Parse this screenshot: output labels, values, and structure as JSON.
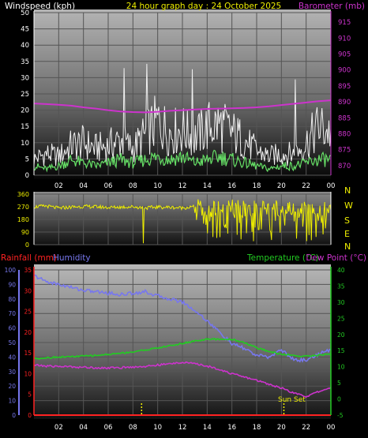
{
  "colors": {
    "wind_avg": "#66e066",
    "wind_gust": "#f0f0f0",
    "barometer": "#cc33cc",
    "direction": "#eeee00",
    "temperature": "#22cc22",
    "dewpoint": "#cc33cc",
    "humidity": "#7777ee",
    "rainfall": "#ff2222",
    "sunset": "#eeee00",
    "title": "#eeee00"
  },
  "chart_data": [
    {
      "type": "line",
      "panel": "wind-barometer",
      "title": "24 hour graph day : 24 October 2025",
      "left_axis_label": "Windspeed (kph)",
      "right_axis_label": "Barometer (mb)",
      "x_tick_labels": [
        "02",
        "04",
        "06",
        "08",
        "10",
        "12",
        "14",
        "16",
        "18",
        "20",
        "22",
        "00"
      ],
      "left_ticks": [
        "0",
        "5",
        "10",
        "15",
        "20",
        "25",
        "30",
        "35",
        "40",
        "45",
        "50"
      ],
      "right_ticks": [
        "870",
        "875",
        "880",
        "885",
        "890",
        "895",
        "900",
        "905",
        "910",
        "915"
      ],
      "ylim_left": [
        0,
        50
      ],
      "ylim_right": [
        867,
        918
      ],
      "x_hours": [
        0,
        1,
        2,
        3,
        4,
        5,
        6,
        7,
        8,
        9,
        10,
        11,
        12,
        13,
        14,
        15,
        16,
        17,
        18,
        19,
        20,
        21,
        22,
        23,
        24
      ],
      "series": [
        {
          "name": "Windspeed",
          "values": [
            3,
            2,
            3,
            5,
            4,
            3,
            4,
            5,
            4,
            5,
            6,
            5,
            6,
            4,
            5,
            6,
            5,
            4,
            3,
            2,
            3,
            3,
            4,
            5,
            5
          ]
        },
        {
          "name": "Gust",
          "values": [
            6,
            8,
            7,
            11,
            12,
            10,
            11,
            13,
            10,
            15,
            20,
            16,
            17,
            14,
            18,
            19,
            16,
            13,
            9,
            7,
            8,
            8,
            12,
            18,
            16
          ]
        },
        {
          "name": "Barometer",
          "values": [
            889.5,
            889.3,
            889.1,
            888.8,
            888.3,
            887.9,
            887.4,
            887.0,
            886.8,
            886.7,
            886.9,
            887.2,
            887.4,
            887.6,
            887.8,
            887.9,
            888.0,
            888.1,
            888.3,
            888.6,
            889.0,
            889.4,
            889.8,
            890.2,
            890.5
          ]
        }
      ]
    },
    {
      "type": "scatter",
      "panel": "wind-direction",
      "y_ticks": [
        "0",
        "90",
        "180",
        "270",
        "360"
      ],
      "direction_labels": [
        "N",
        "W",
        "S",
        "E",
        "N"
      ],
      "ylim": [
        0,
        360
      ],
      "x_hours": [
        0,
        1,
        2,
        3,
        4,
        5,
        6,
        7,
        8,
        9,
        10,
        11,
        12,
        13,
        14,
        15,
        16,
        17,
        18,
        19,
        20,
        21,
        22,
        23,
        24
      ],
      "series": [
        {
          "name": "Direction",
          "values": [
            270,
            275,
            260,
            268,
            272,
            270,
            265,
            268,
            270,
            262,
            268,
            266,
            262,
            270,
            250,
            255,
            262,
            255,
            258,
            250,
            262,
            248,
            255,
            262,
            268
          ]
        }
      ]
    },
    {
      "type": "line",
      "panel": "temp-hum-rain",
      "left_axis_label_rain": "Rainfall (mm)",
      "left_axis_label_hum": "Humidity",
      "right_axis_label_temp": "Temperature (°C)",
      "right_axis_label_dew": "Dew Point (°C)",
      "annotation": "Sun Set",
      "sunset_hour": 20.2,
      "marker_hour": 8.7,
      "x_tick_labels": [
        "02",
        "04",
        "06",
        "08",
        "10",
        "12",
        "14",
        "16",
        "18",
        "20",
        "22",
        "00"
      ],
      "humidity_ticks": [
        "0",
        "10",
        "20",
        "30",
        "40",
        "50",
        "60",
        "70",
        "80",
        "90",
        "100"
      ],
      "rain_ticks": [
        "0",
        "5",
        "10",
        "15",
        "20",
        "25",
        "30",
        "35"
      ],
      "temp_ticks": [
        "-5",
        "0",
        "5",
        "10",
        "15",
        "20",
        "25",
        "30",
        "35",
        "40"
      ],
      "ylim_humidity": [
        0,
        100
      ],
      "ylim_rain": [
        0,
        35
      ],
      "ylim_temp": [
        -5,
        40
      ],
      "x_hours": [
        0,
        1,
        2,
        3,
        4,
        5,
        6,
        7,
        8,
        9,
        10,
        11,
        12,
        13,
        14,
        15,
        16,
        17,
        18,
        19,
        20,
        21,
        22,
        23,
        24
      ],
      "series": [
        {
          "name": "Humidity",
          "values": [
            96,
            92,
            90,
            88,
            86,
            85,
            84,
            83,
            84,
            85,
            82,
            80,
            78,
            72,
            65,
            57,
            49,
            46,
            41,
            40,
            45,
            38,
            38,
            42,
            45
          ]
        },
        {
          "name": "Temperature",
          "values": [
            12.5,
            12.8,
            13,
            13.1,
            13.3,
            13.5,
            13.8,
            14.2,
            14.6,
            15.2,
            15.8,
            16.5,
            17.2,
            18,
            18.5,
            18.5,
            18.5,
            17.5,
            15.8,
            14.8,
            13.8,
            13.5,
            13.2,
            13.6,
            14
          ]
        },
        {
          "name": "Dew Point",
          "values": [
            10.5,
            10.2,
            10.1,
            10.0,
            9.8,
            9.7,
            9.6,
            9.7,
            9.9,
            10.1,
            10.5,
            10.9,
            11.4,
            10.9,
            10.2,
            9.2,
            7.8,
            6.8,
            5.8,
            4.6,
            3.4,
            1.8,
            0.8,
            2.2,
            3.6
          ]
        },
        {
          "name": "Rainfall",
          "values": [
            0,
            0,
            0,
            0,
            0,
            0,
            0,
            0,
            0,
            0,
            0,
            0,
            0,
            0,
            0,
            0,
            0,
            0,
            0,
            0,
            0,
            0,
            0,
            0,
            0
          ]
        }
      ]
    }
  ]
}
